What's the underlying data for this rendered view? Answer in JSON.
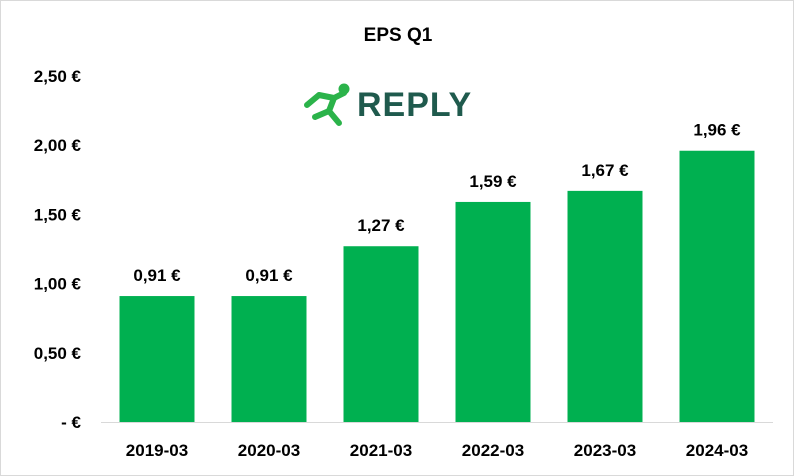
{
  "chart_data": {
    "type": "bar",
    "title": "EPS Q1",
    "categories": [
      "2019-03",
      "2020-03",
      "2021-03",
      "2022-03",
      "2023-03",
      "2024-03"
    ],
    "values": [
      0.91,
      0.91,
      1.27,
      1.59,
      1.67,
      1.96
    ],
    "value_labels": [
      "0,91 €",
      "0,91 €",
      "1,27 €",
      "1,59 €",
      "1,67 €",
      "1,96 €"
    ],
    "ylim": [
      0,
      2.5
    ],
    "yticks": [
      0,
      0.5,
      1.0,
      1.5,
      2.0,
      2.5
    ],
    "ytick_labels": [
      "-  €",
      "0,50 €",
      "1,00 €",
      "1,50 €",
      "2,00 €",
      "2,50 €"
    ],
    "xlabel": "",
    "ylabel": "",
    "grid": false,
    "bar_color": "#00b050"
  },
  "logo": {
    "text": "REPLY",
    "icon": "running-figure-icon",
    "text_color": "#1f5a4d",
    "icon_color": "#2bb34a"
  }
}
